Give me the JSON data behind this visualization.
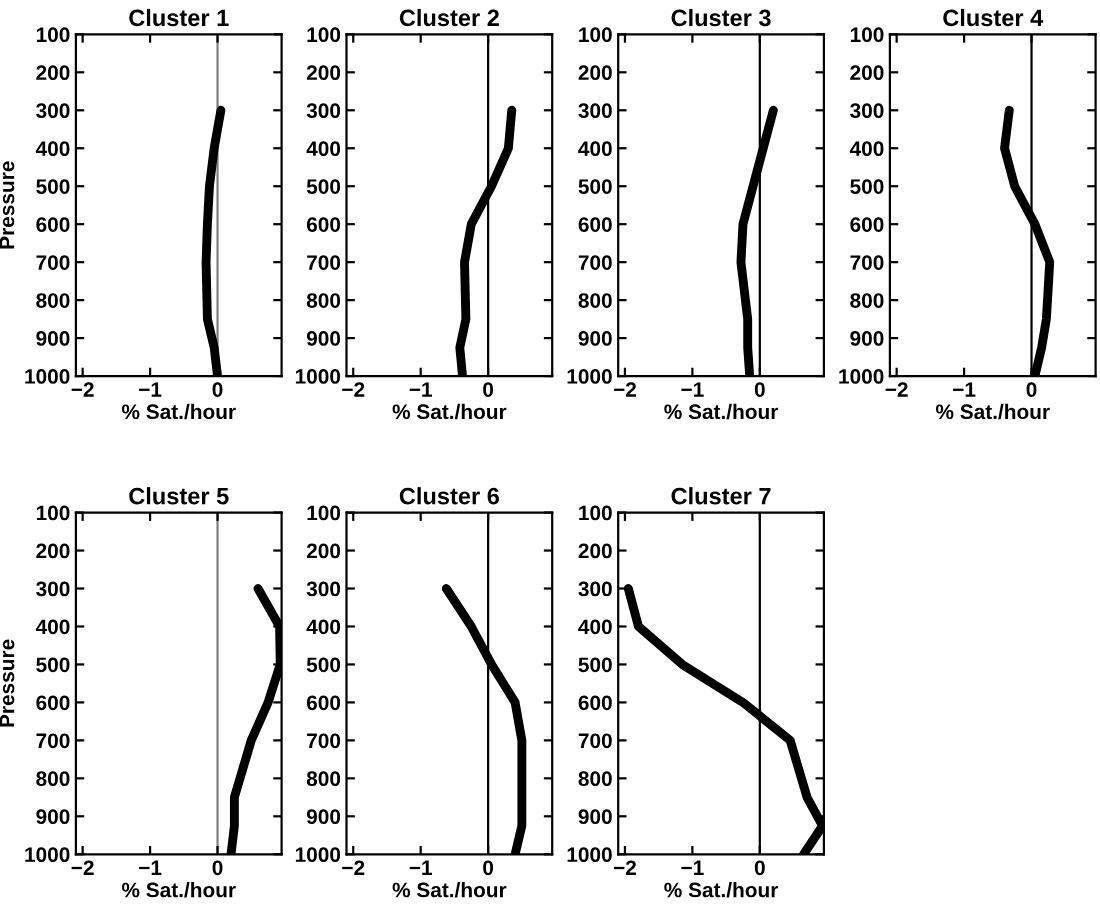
{
  "chart_data": [
    {
      "type": "line",
      "title": "Cluster 1",
      "xlabel": "% Sat./hour",
      "ylabel": "Pressure",
      "xlim": [
        -2.1,
        0.95
      ],
      "xticks": [
        -2,
        -1,
        0
      ],
      "ylim": [
        1000,
        100
      ],
      "yticks": [
        100,
        200,
        300,
        400,
        500,
        600,
        700,
        800,
        900,
        1000
      ],
      "grid": false,
      "legend": false,
      "ref_lines": [
        {
          "axis": "x",
          "value": 0,
          "color": "#808080"
        }
      ],
      "series": [
        {
          "color": "#000000",
          "x": [
            0.05,
            -0.05,
            -0.12,
            -0.15,
            -0.17,
            -0.15,
            -0.05,
            0.0
          ],
          "values": [
            300,
            400,
            500,
            600,
            700,
            850,
            925,
            1000
          ]
        }
      ]
    },
    {
      "type": "line",
      "title": "Cluster 2",
      "xlabel": "% Sat./hour",
      "xlim": [
        -2.1,
        0.95
      ],
      "xticks": [
        -2,
        -1,
        0
      ],
      "ylim": [
        1000,
        100
      ],
      "yticks": [
        100,
        200,
        300,
        400,
        500,
        600,
        700,
        800,
        900,
        1000
      ],
      "grid": false,
      "legend": false,
      "ref_lines": [
        {
          "axis": "x",
          "value": 0,
          "color": "#000000"
        }
      ],
      "series": [
        {
          "color": "#000000",
          "x": [
            0.35,
            0.3,
            0.05,
            -0.25,
            -0.35,
            -0.33,
            -0.42,
            -0.38
          ],
          "values": [
            300,
            400,
            500,
            600,
            700,
            850,
            925,
            1000
          ]
        }
      ]
    },
    {
      "type": "line",
      "title": "Cluster 3",
      "xlabel": "% Sat./hour",
      "xlim": [
        -2.1,
        0.95
      ],
      "xticks": [
        -2,
        -1,
        0
      ],
      "ylim": [
        1000,
        100
      ],
      "yticks": [
        100,
        200,
        300,
        400,
        500,
        600,
        700,
        800,
        900,
        1000
      ],
      "grid": false,
      "legend": false,
      "ref_lines": [
        {
          "axis": "x",
          "value": 0,
          "color": "#000000"
        }
      ],
      "series": [
        {
          "color": "#000000",
          "x": [
            0.2,
            0.05,
            -0.1,
            -0.25,
            -0.28,
            -0.18,
            -0.18,
            -0.15
          ],
          "values": [
            300,
            400,
            500,
            600,
            700,
            850,
            925,
            1000
          ]
        }
      ]
    },
    {
      "type": "line",
      "title": "Cluster 4",
      "xlabel": "% Sat./hour",
      "xlim": [
        -2.1,
        0.95
      ],
      "xticks": [
        -2,
        -1,
        0
      ],
      "ylim": [
        1000,
        100
      ],
      "yticks": [
        100,
        200,
        300,
        400,
        500,
        600,
        700,
        800,
        900,
        1000
      ],
      "grid": false,
      "legend": false,
      "ref_lines": [
        {
          "axis": "x",
          "value": 0,
          "color": "#000000"
        }
      ],
      "series": [
        {
          "color": "#000000",
          "x": [
            -0.33,
            -0.4,
            -0.25,
            0.05,
            0.27,
            0.22,
            0.15,
            0.05
          ],
          "values": [
            300,
            400,
            500,
            600,
            700,
            850,
            925,
            1000
          ]
        }
      ]
    },
    {
      "type": "line",
      "title": "Cluster 5",
      "xlabel": "% Sat./hour",
      "ylabel": "Pressure",
      "xlim": [
        -2.1,
        0.95
      ],
      "xticks": [
        -2,
        -1,
        0
      ],
      "ylim": [
        1000,
        100
      ],
      "yticks": [
        100,
        200,
        300,
        400,
        500,
        600,
        700,
        800,
        900,
        1000
      ],
      "grid": false,
      "legend": false,
      "ref_lines": [
        {
          "axis": "x",
          "value": 0,
          "color": "#808080"
        }
      ],
      "series": [
        {
          "color": "#000000",
          "x": [
            0.6,
            0.92,
            0.93,
            0.75,
            0.5,
            0.25,
            0.25,
            0.2
          ],
          "values": [
            300,
            400,
            500,
            600,
            700,
            850,
            925,
            1000
          ]
        }
      ]
    },
    {
      "type": "line",
      "title": "Cluster 6",
      "xlabel": "% Sat./hour",
      "xlim": [
        -2.1,
        0.95
      ],
      "xticks": [
        -2,
        -1,
        0
      ],
      "ylim": [
        1000,
        100
      ],
      "yticks": [
        100,
        200,
        300,
        400,
        500,
        600,
        700,
        800,
        900,
        1000
      ],
      "grid": false,
      "legend": false,
      "ref_lines": [
        {
          "axis": "x",
          "value": 0,
          "color": "#000000"
        }
      ],
      "series": [
        {
          "color": "#000000",
          "x": [
            -0.62,
            -0.25,
            0.05,
            0.4,
            0.5,
            0.5,
            0.5,
            0.4
          ],
          "values": [
            300,
            400,
            500,
            600,
            700,
            850,
            925,
            1000
          ]
        }
      ]
    },
    {
      "type": "line",
      "title": "Cluster 7",
      "xlabel": "% Sat./hour",
      "xlim": [
        -2.1,
        0.95
      ],
      "xticks": [
        -2,
        -1,
        0
      ],
      "ylim": [
        1000,
        100
      ],
      "yticks": [
        100,
        200,
        300,
        400,
        500,
        600,
        700,
        800,
        900,
        1000
      ],
      "grid": false,
      "legend": false,
      "ref_lines": [
        {
          "axis": "x",
          "value": 0,
          "color": "#000000"
        }
      ],
      "series": [
        {
          "color": "#000000",
          "x": [
            -1.95,
            -1.8,
            -1.15,
            -0.25,
            0.45,
            0.7,
            0.93,
            0.65
          ],
          "values": [
            300,
            400,
            500,
            600,
            700,
            850,
            925,
            1000
          ]
        }
      ]
    }
  ]
}
